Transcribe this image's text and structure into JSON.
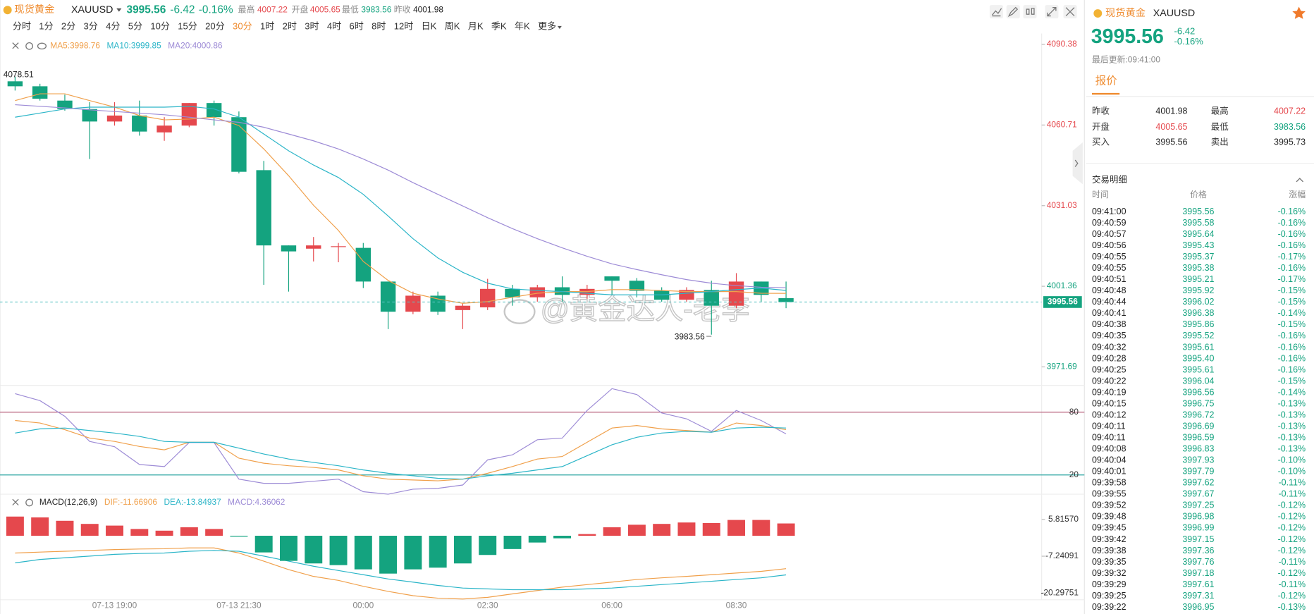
{
  "header": {
    "name": "现货黄金",
    "symbol": "XAUUSD",
    "price": "3995.56",
    "change": "-6.42",
    "change_pct": "-0.16%",
    "stats": [
      {
        "label": "最高",
        "value": "4007.22"
      },
      {
        "label": "开盘",
        "value": "4005.65"
      },
      {
        "label": "最低",
        "value": "3983.56"
      },
      {
        "label": "昨收",
        "value": "4001.98"
      }
    ]
  },
  "timeframes": {
    "items": [
      "分时",
      "1分",
      "2分",
      "3分",
      "4分",
      "5分",
      "10分",
      "15分",
      "20分",
      "30分",
      "1时",
      "2时",
      "3时",
      "4时",
      "6时",
      "8时",
      "12时",
      "日K",
      "周K",
      "月K",
      "季K",
      "年K",
      "更多"
    ],
    "active": "30分"
  },
  "watermark": "@黄金达人-老李",
  "chart_data": [
    {
      "type": "candlestick",
      "up_color": "#e5484d",
      "down_color": "#14a37f",
      "categories": [
        null,
        null,
        null,
        null,
        "07-13 19:00",
        null,
        null,
        null,
        null,
        "07-13 21:30",
        null,
        null,
        null,
        null,
        "00:00",
        null,
        null,
        null,
        null,
        "02:30",
        null,
        null,
        null,
        null,
        "06:00",
        null,
        null,
        null,
        null,
        "08:30",
        null,
        null
      ],
      "open": [
        4076.8,
        4074.97,
        4069.7,
        4066.6,
        4062.0,
        4064.2,
        4058.0,
        4060.5,
        4068.8,
        4063.6,
        4044.1,
        4016.4,
        4015.2,
        4015.8,
        4015.5,
        4003.1,
        3992.0,
        3997.9,
        3992.6,
        3993.6,
        4000.4,
        3997.3,
        4001.0,
        3998.2,
        4005.0,
        4003.4,
        3999.7,
        3996.4,
        4000.0,
        3994.2,
        4003.1,
        3997.0
      ],
      "high": [
        4078.51,
        4075.9,
        4071.9,
        4069.1,
        4069.1,
        4069.7,
        4063.6,
        4068.8,
        4069.7,
        4065.7,
        4047.5,
        4016.4,
        4019.5,
        4017.3,
        4017.3,
        4003.1,
        3999.4,
        3999.4,
        3995.1,
        4004.1,
        4001.9,
        4001.9,
        4005.0,
        4001.9,
        4005.0,
        4004.4,
        4001.0,
        4001.0,
        4003.4,
        4006.2,
        4003.1,
        4003.1
      ],
      "low": [
        4073.4,
        4069.7,
        4066.0,
        4048.2,
        4060.5,
        4056.8,
        4054.9,
        4059.9,
        4060.5,
        4042.9,
        4001.9,
        3999.4,
        4010.5,
        4010.2,
        4000.7,
        3985.6,
        3991.1,
        3990.8,
        3985.6,
        3992.6,
        3994.2,
        3995.7,
        3995.7,
        3996.7,
        3998.2,
        3997.3,
        3995.7,
        3995.7,
        3983.56,
        3993.3,
        3995.7,
        3993.3
      ],
      "close": [
        4074.97,
        4070.4,
        4066.6,
        4062.0,
        4064.2,
        4058.3,
        4060.5,
        4068.8,
        4063.6,
        4043.5,
        4016.4,
        4014.2,
        4016.4,
        4016.1,
        4003.1,
        3992.0,
        3997.9,
        3992.0,
        3994.2,
        4000.4,
        3997.3,
        4001.0,
        3998.2,
        4000.4,
        4003.4,
        3999.7,
        3996.4,
        4000.0,
        3994.2,
        4003.1,
        3998.2,
        3995.56
      ],
      "series": [
        {
          "name": "MA5:3998.76",
          "color": "#f0a04b",
          "values": [
            4069.7,
            4072.2,
            4072.2,
            4069.7,
            4067.3,
            4064.2,
            4062.6,
            4062.9,
            4063.6,
            4060.5,
            4051.9,
            4042.0,
            4031.2,
            4021.9,
            4010.5,
            4003.5,
            3998.8,
            3996.7,
            3995.1,
            3995.7,
            3997.3,
            3998.8,
            3999.4,
            3999.4,
            4000.1,
            4000.1,
            3999.8,
            3999.4,
            3999.4,
            3999.4,
            3998.8,
            3998.76
          ]
        },
        {
          "name": "MA10:3999.85",
          "color": "#2bb5c8",
          "values": [
            4063.6,
            4065.1,
            4066.6,
            4067.3,
            4067.3,
            4067.3,
            4067.3,
            4067.6,
            4066.6,
            4063.6,
            4057.4,
            4051.2,
            4046.0,
            4041.4,
            4035.2,
            4027.2,
            4018.9,
            4011.8,
            4006.5,
            4002.5,
            4000.4,
            3999.8,
            3999.4,
            3998.8,
            3998.2,
            3998.2,
            3998.2,
            3998.8,
            3999.4,
            4000.1,
            4000.7,
            3999.85
          ]
        },
        {
          "name": "MA20:4000.86",
          "color": "#9d8bd6",
          "values": [
            4068.2,
            4067.6,
            4067.0,
            4066.3,
            4065.7,
            4065.1,
            4064.5,
            4063.6,
            4062.6,
            4061.7,
            4059.9,
            4057.4,
            4054.9,
            4051.9,
            4048.2,
            4044.1,
            4039.5,
            4035.2,
            4030.9,
            4026.6,
            4022.6,
            4018.9,
            4015.5,
            4012.4,
            4009.6,
            4007.5,
            4005.6,
            4003.8,
            4002.5,
            4001.6,
            4001.0,
            4000.86
          ]
        }
      ],
      "ylim": [
        3966.45,
        4094.39
      ],
      "yticks": [
        4090.38,
        4060.71,
        4031.03,
        4001.36,
        3971.69
      ]
    },
    {
      "type": "line",
      "ylim": [
        0,
        103.2
      ],
      "yticks": [
        20,
        80
      ],
      "ytick_colors": [
        "#2aa5a0",
        "#b55a78"
      ],
      "series": [
        {
          "color": "#9d8bd6",
          "values": [
            97.6,
            91,
            76,
            52,
            47,
            30,
            28,
            51,
            51,
            16,
            12,
            12,
            14,
            16,
            4,
            1.6,
            6.4,
            7.2,
            10.4,
            34.4,
            39.2,
            53.6,
            55.2,
            81.6,
            102.4,
            96.8,
            79.2,
            73.6,
            61.6,
            81.6,
            72,
            59.2
          ]
        },
        {
          "color": "#f0a04b",
          "values": [
            72,
            69.6,
            63.2,
            55.2,
            52,
            47.2,
            44,
            51.2,
            51.2,
            36,
            31.2,
            28.8,
            27.2,
            24.8,
            19.2,
            16,
            15.2,
            14.4,
            16,
            21.6,
            28,
            35.2,
            37.6,
            51.2,
            64.8,
            67.2,
            64,
            62.4,
            60.8,
            69.6,
            67.2,
            63.2
          ]
        },
        {
          "color": "#2bb5c8",
          "values": [
            60,
            64,
            64.8,
            62.4,
            60,
            56.8,
            52,
            51.2,
            51.2,
            45.6,
            40,
            35.2,
            32,
            28.8,
            24.8,
            21.6,
            19.2,
            16.8,
            16,
            19.2,
            21.6,
            24.8,
            28,
            38.4,
            48.8,
            56,
            60,
            61.6,
            60.8,
            64.8,
            65.6,
            64.8
          ]
        }
      ]
    },
    {
      "type": "macd",
      "title": "MACD(12,26,9)",
      "up_color": "#e5484d",
      "down_color": "#14a37f",
      "ylim": [
        -23.26,
        9.67
      ],
      "yticks": [
        {
          "value": 5.8157,
          "label": "5.81570"
        },
        -7.24091,
        -20.29751
      ],
      "series": [
        {
          "name": "DIF:-11.66906",
          "color": "#f0a04b",
          "values": [
            -6.1,
            -5.8,
            -5.5,
            -5.2,
            -4.9,
            -4.7,
            -4.6,
            -4.3,
            -4.3,
            -6.1,
            -9.0,
            -12.0,
            -14.4,
            -15.8,
            -17.9,
            -19.7,
            -21.2,
            -22.1,
            -22.4,
            -21.8,
            -20.6,
            -19.4,
            -18.2,
            -17.3,
            -16.4,
            -15.5,
            -14.9,
            -14.4,
            -13.8,
            -13.2,
            -12.6,
            -11.66906
          ]
        },
        {
          "name": "DEA:-13.84937",
          "color": "#2bb5c8",
          "values": [
            -9.6,
            -8.4,
            -7.8,
            -7.2,
            -6.6,
            -6.3,
            -6.1,
            -5.5,
            -5.2,
            -5.5,
            -7.2,
            -9.0,
            -10.8,
            -12.3,
            -13.8,
            -15.3,
            -16.4,
            -17.6,
            -18.5,
            -18.8,
            -19.1,
            -19.1,
            -19.1,
            -18.8,
            -18.5,
            -17.9,
            -17.3,
            -16.7,
            -16.1,
            -15.5,
            -14.9,
            -13.84937
          ]
        },
        {
          "name": "MACD:4.36062",
          "color": "#9d8bd6",
          "bars": true,
          "values": [
            6.8,
            6.5,
            5.3,
            4.2,
            3.6,
            2.4,
            1.8,
            3.0,
            2.4,
            -0.3,
            -5.9,
            -8.9,
            -9.8,
            -10.4,
            -11.9,
            -13.4,
            -11.9,
            -11.3,
            -9.8,
            -6.8,
            -4.7,
            -2.4,
            -0.9,
            0.6,
            3.0,
            3.9,
            4.2,
            4.7,
            4.5,
            5.6,
            5.6,
            4.36062
          ]
        }
      ]
    }
  ],
  "quote_panel": {
    "name": "现货黄金",
    "symbol": "XAUUSD",
    "price": "3995.56",
    "change": "-6.42",
    "change_pct": "-0.16%",
    "updated": "最后更新:09:41:00",
    "tab": "报价",
    "stats": [
      {
        "label": "昨收",
        "value": "4001.98"
      },
      {
        "label": "最高",
        "value": "4007.22"
      },
      {
        "label": "开盘",
        "value": "4005.65"
      },
      {
        "label": "最低",
        "value": "3983.56"
      },
      {
        "label": "买入",
        "value": "3995.56"
      },
      {
        "label": "卖出",
        "value": "3995.73"
      }
    ]
  },
  "trades": {
    "title": "交易明细",
    "columns": [
      "时间",
      "价格",
      "涨幅"
    ],
    "rows": [
      [
        "09:41:00",
        "3995.56",
        "-0.16%"
      ],
      [
        "09:40:59",
        "3995.58",
        "-0.16%"
      ],
      [
        "09:40:57",
        "3995.64",
        "-0.16%"
      ],
      [
        "09:40:56",
        "3995.43",
        "-0.16%"
      ],
      [
        "09:40:55",
        "3995.37",
        "-0.17%"
      ],
      [
        "09:40:55",
        "3995.38",
        "-0.16%"
      ],
      [
        "09:40:51",
        "3995.21",
        "-0.17%"
      ],
      [
        "09:40:48",
        "3995.92",
        "-0.15%"
      ],
      [
        "09:40:44",
        "3996.02",
        "-0.15%"
      ],
      [
        "09:40:41",
        "3996.38",
        "-0.14%"
      ],
      [
        "09:40:38",
        "3995.86",
        "-0.15%"
      ],
      [
        "09:40:35",
        "3995.52",
        "-0.16%"
      ],
      [
        "09:40:32",
        "3995.61",
        "-0.16%"
      ],
      [
        "09:40:28",
        "3995.40",
        "-0.16%"
      ],
      [
        "09:40:25",
        "3995.61",
        "-0.16%"
      ],
      [
        "09:40:22",
        "3996.04",
        "-0.15%"
      ],
      [
        "09:40:19",
        "3996.56",
        "-0.14%"
      ],
      [
        "09:40:15",
        "3996.75",
        "-0.13%"
      ],
      [
        "09:40:12",
        "3996.72",
        "-0.13%"
      ],
      [
        "09:40:11",
        "3996.69",
        "-0.13%"
      ],
      [
        "09:40:11",
        "3996.59",
        "-0.13%"
      ],
      [
        "09:40:08",
        "3996.83",
        "-0.13%"
      ],
      [
        "09:40:04",
        "3997.93",
        "-0.10%"
      ],
      [
        "09:40:01",
        "3997.79",
        "-0.10%"
      ],
      [
        "09:39:58",
        "3997.62",
        "-0.11%"
      ],
      [
        "09:39:55",
        "3997.67",
        "-0.11%"
      ],
      [
        "09:39:52",
        "3997.25",
        "-0.12%"
      ],
      [
        "09:39:48",
        "3996.98",
        "-0.12%"
      ],
      [
        "09:39:45",
        "3996.99",
        "-0.12%"
      ],
      [
        "09:39:42",
        "3997.15",
        "-0.12%"
      ],
      [
        "09:39:38",
        "3997.36",
        "-0.12%"
      ],
      [
        "09:39:35",
        "3997.76",
        "-0.11%"
      ],
      [
        "09:39:32",
        "3997.18",
        "-0.12%"
      ],
      [
        "09:39:29",
        "3997.61",
        "-0.11%"
      ],
      [
        "09:39:25",
        "3997.31",
        "-0.12%"
      ],
      [
        "09:39:22",
        "3996.95",
        "-0.13%"
      ]
    ]
  }
}
